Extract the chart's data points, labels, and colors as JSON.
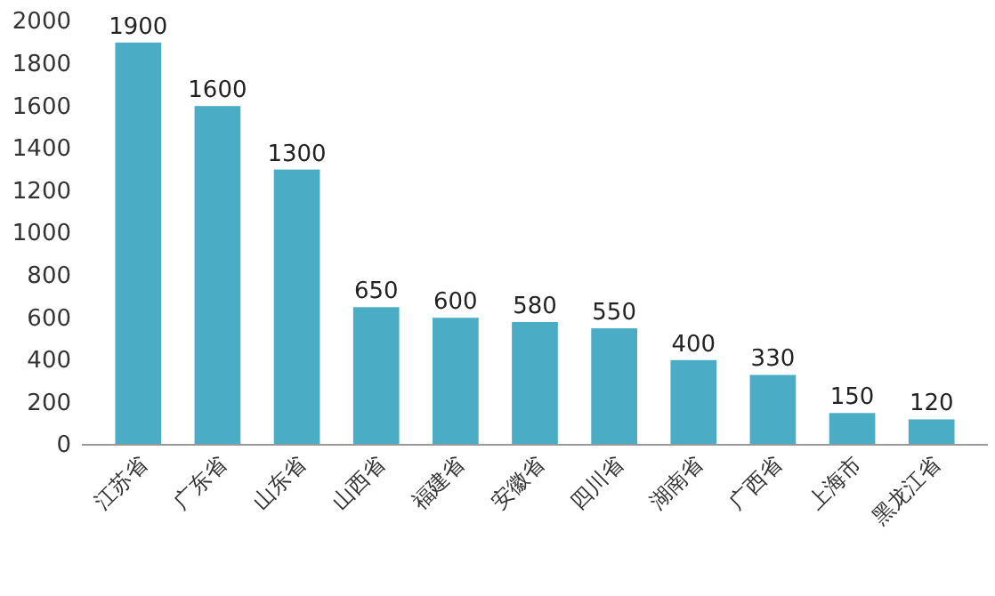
{
  "chart_data": {
    "type": "bar",
    "categories": [
      "江苏省",
      "广东省",
      "山东省",
      "山西省",
      "福建省",
      "安徽省",
      "四川省",
      "湖南省",
      "广西省",
      "上海市",
      "黑龙江省"
    ],
    "values": [
      1900,
      1600,
      1300,
      650,
      600,
      580,
      550,
      400,
      330,
      150,
      120
    ],
    "color": "#4bacc6",
    "ylim": [
      0,
      2000
    ],
    "yticks": [
      0,
      200,
      400,
      600,
      800,
      1000,
      1200,
      1400,
      1600,
      1800,
      2000
    ],
    "grid": false,
    "data_labels": true
  }
}
